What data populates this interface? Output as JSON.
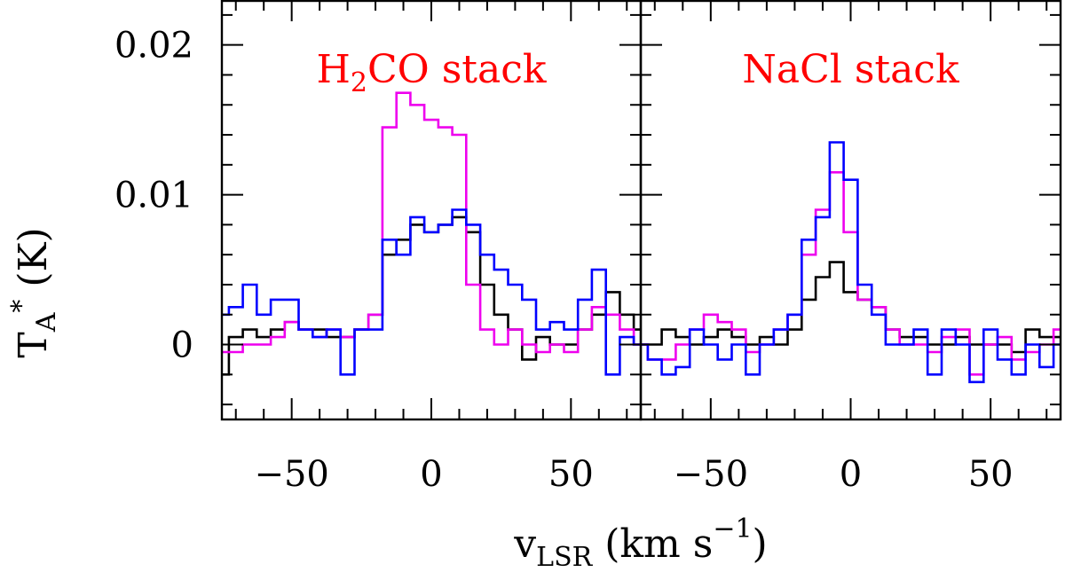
{
  "chart_data": {
    "type": "line",
    "style": "step",
    "ylabel": {
      "main": "T",
      "sub": "A",
      "sup": "*",
      "rest": " (K)"
    },
    "xlabel": {
      "main": "v",
      "sub": "LSR",
      "rest": " (km s",
      "sup": "−1",
      "close": ")"
    },
    "ylim": [
      -0.005,
      0.023
    ],
    "yticks": [
      0,
      0.01,
      0.02
    ],
    "ytick_labels": [
      "0",
      "0.01",
      "0.02"
    ],
    "colors": {
      "title": "#ff0000",
      "axes": "#000000"
    },
    "panels": [
      {
        "title": {
          "before": "H",
          "sub": "2",
          "after": "CO stack"
        },
        "xlim": [
          -75,
          75
        ],
        "xticks": [
          -50,
          0,
          50
        ],
        "xtick_labels": [
          "−50",
          "0",
          "50"
        ],
        "series": [
          {
            "name": "black",
            "color": "#000000",
            "x": [
              -75,
              -70,
              -65,
              -60,
              -55,
              -50,
              -45,
              -40,
              -35,
              -30,
              -25,
              -20,
              -15,
              -10,
              -5,
              0,
              5,
              10,
              15,
              20,
              25,
              30,
              35,
              40,
              45,
              50,
              55,
              60,
              65,
              70,
              75
            ],
            "y": [
              -0.002,
              0.0005,
              0.001,
              0.0005,
              0.001,
              0.0015,
              0.001,
              0.001,
              0.0005,
              0.0005,
              0.001,
              0.002,
              0.006,
              0.007,
              0.008,
              0.0075,
              0.008,
              0.0085,
              0.0075,
              0.004,
              0.002,
              0.001,
              -0.001,
              0.0005,
              0,
              0,
              0.001,
              0.002,
              0.0035,
              0.002,
              0.001
            ]
          },
          {
            "name": "magenta",
            "color": "#ee00ee",
            "x": [
              -75,
              -70,
              -65,
              -60,
              -55,
              -50,
              -45,
              -40,
              -35,
              -30,
              -25,
              -20,
              -15,
              -10,
              -5,
              0,
              5,
              10,
              15,
              20,
              25,
              30,
              35,
              40,
              45,
              50,
              55,
              60,
              65,
              70,
              75
            ],
            "y": [
              -0.0005,
              -0.0005,
              0,
              0,
              0.0005,
              0.0015,
              0.001,
              0.0005,
              0.001,
              0.0005,
              0.001,
              0.002,
              0.0145,
              0.0168,
              0.016,
              0.015,
              0.0145,
              0.014,
              0.004,
              0.001,
              0,
              0.001,
              0,
              -0.0005,
              0,
              -0.0005,
              0.001,
              0.0025,
              0.002,
              0.001,
              0
            ]
          },
          {
            "name": "blue",
            "color": "#0000ff",
            "x": [
              -75,
              -70,
              -65,
              -60,
              -55,
              -50,
              -45,
              -40,
              -35,
              -30,
              -25,
              -20,
              -15,
              -10,
              -5,
              0,
              5,
              10,
              15,
              20,
              25,
              30,
              35,
              40,
              45,
              50,
              55,
              60,
              65,
              70,
              75
            ],
            "y": [
              0.002,
              0.0025,
              0.004,
              0.002,
              0.003,
              0.003,
              0.001,
              0.0005,
              0.001,
              -0.002,
              0.001,
              0.001,
              0.007,
              0.006,
              0.0085,
              0.0075,
              0.008,
              0.009,
              0.008,
              0.006,
              0.005,
              0.004,
              0.003,
              0.001,
              0.0015,
              0.001,
              0.003,
              0.005,
              -0.002,
              0.0005,
              0
            ]
          }
        ]
      },
      {
        "title": {
          "before": "NaCl stack",
          "sub": "",
          "after": ""
        },
        "xlim": [
          -75,
          75
        ],
        "xticks": [
          -50,
          0,
          50
        ],
        "xtick_labels": [
          "−50",
          "0",
          "50"
        ],
        "series": [
          {
            "name": "black",
            "color": "#000000",
            "x": [
              -75,
              -70,
              -65,
              -60,
              -55,
              -50,
              -45,
              -40,
              -35,
              -30,
              -25,
              -20,
              -15,
              -10,
              -5,
              0,
              5,
              10,
              15,
              20,
              25,
              30,
              35,
              40,
              45,
              50,
              55,
              60,
              65,
              70,
              75
            ],
            "y": [
              0,
              0,
              0.001,
              0.0005,
              0,
              0.0005,
              0.001,
              0.0005,
              0,
              0.0005,
              0,
              0.001,
              0.003,
              0.0045,
              0.0055,
              0.0035,
              0.003,
              0.0025,
              0.001,
              0.0005,
              0.0005,
              0,
              0,
              0.0005,
              0,
              0,
              0,
              -0.0005,
              0.001,
              0.0005,
              0.0005
            ]
          },
          {
            "name": "magenta",
            "color": "#ee00ee",
            "x": [
              -75,
              -70,
              -65,
              -60,
              -55,
              -50,
              -45,
              -40,
              -35,
              -30,
              -25,
              -20,
              -15,
              -10,
              -5,
              0,
              5,
              10,
              15,
              20,
              25,
              30,
              35,
              40,
              45,
              50,
              55,
              60,
              65,
              70,
              75
            ],
            "y": [
              0,
              -0.001,
              -0.001,
              0,
              0.001,
              0.002,
              0.0015,
              0.001,
              -0.0005,
              0,
              0.001,
              0.002,
              0.006,
              0.009,
              0.0115,
              0.0075,
              0.003,
              0.0025,
              0.001,
              0,
              0,
              -0.0005,
              0.0005,
              0.001,
              -0.002,
              0,
              0.0005,
              -0.001,
              -0.0005,
              0,
              0.001
            ]
          },
          {
            "name": "blue",
            "color": "#0000ff",
            "x": [
              -75,
              -70,
              -65,
              -60,
              -55,
              -50,
              -45,
              -40,
              -35,
              -30,
              -25,
              -20,
              -15,
              -10,
              -5,
              0,
              5,
              10,
              15,
              20,
              25,
              30,
              35,
              40,
              45,
              50,
              55,
              60,
              65,
              70,
              75
            ],
            "y": [
              0,
              -0.001,
              -0.002,
              -0.0015,
              0.001,
              0,
              -0.001,
              0,
              -0.002,
              0,
              0.001,
              0.002,
              0.007,
              0.0085,
              0.0135,
              0.011,
              0.004,
              0.002,
              0,
              0,
              0.001,
              -0.002,
              0.001,
              0,
              -0.0025,
              0.001,
              -0.001,
              -0.002,
              0,
              -0.0015,
              0
            ]
          }
        ]
      }
    ]
  }
}
